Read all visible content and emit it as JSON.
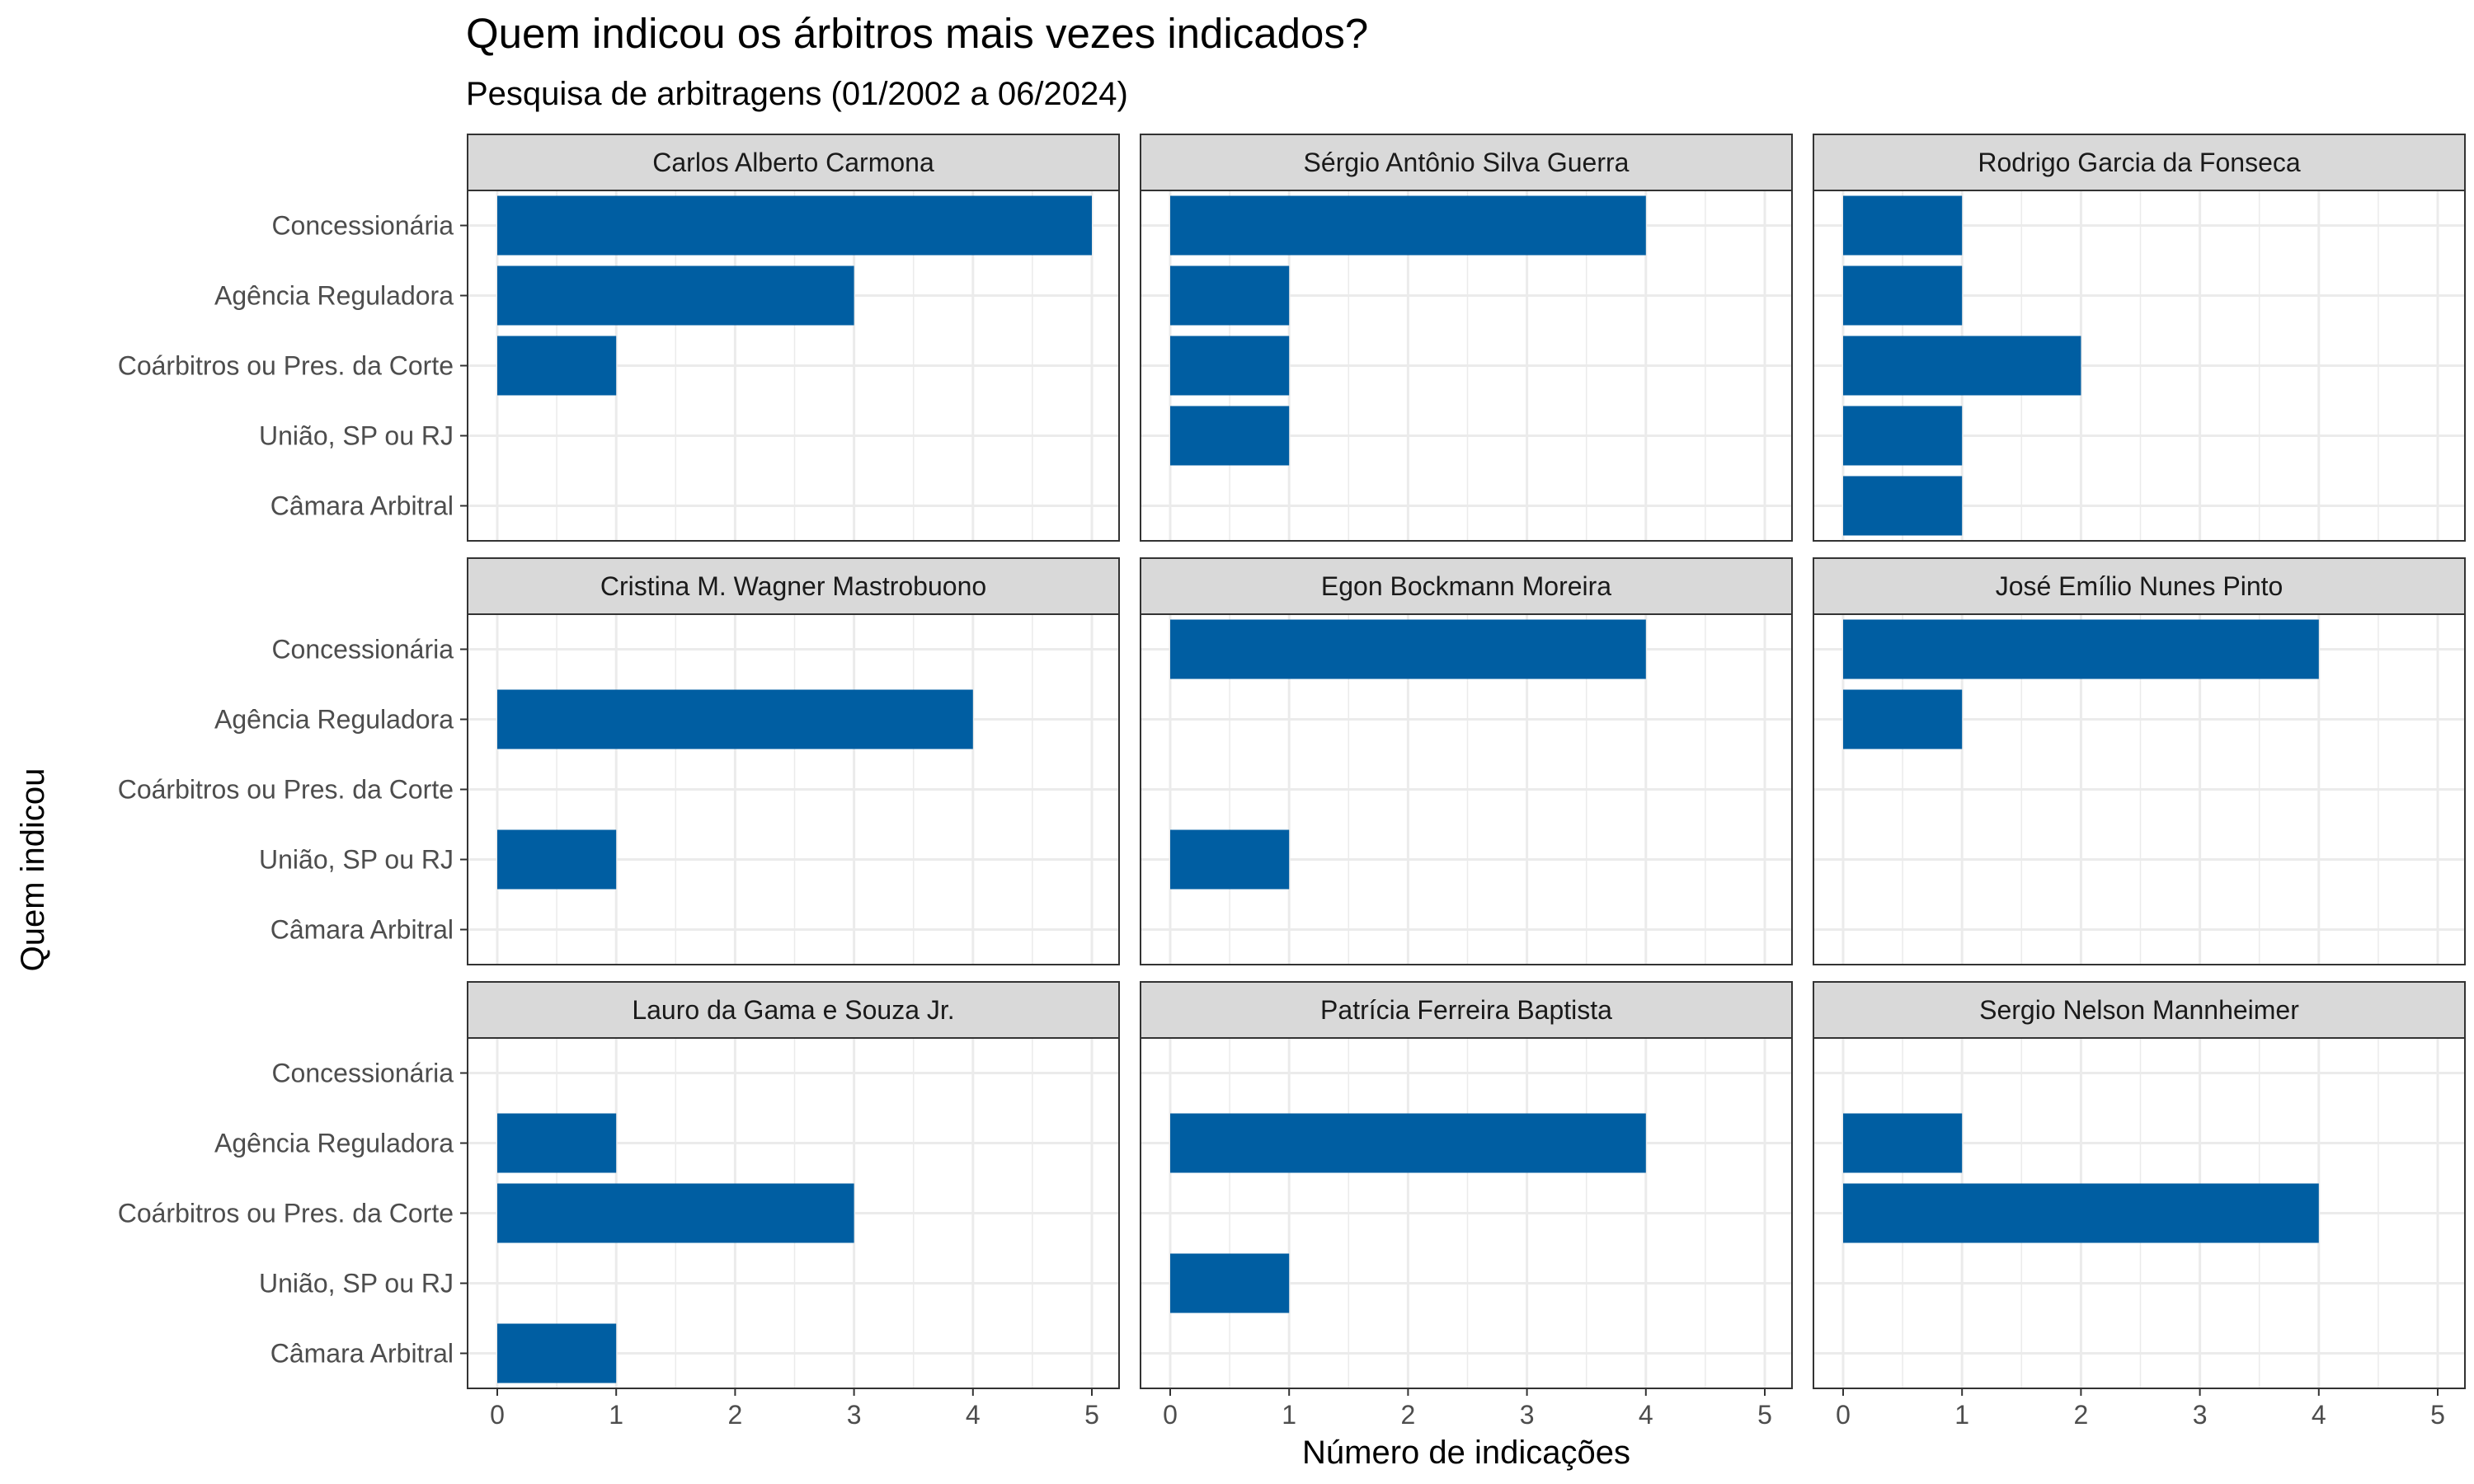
{
  "chart_data": {
    "type": "bar",
    "orientation": "horizontal",
    "title": "Quem indicou os árbitros mais vezes indicados?",
    "subtitle": "Pesquisa de arbitragens (01/2002 a 06/2024)",
    "xlabel": "Número de indicações",
    "ylabel": "Quem indicou",
    "xlim": [
      0,
      5
    ],
    "x_ticks": [
      "0",
      "1",
      "2",
      "3",
      "4",
      "5"
    ],
    "grid": true,
    "bar_color": "#005ea2",
    "categories": [
      "Concessionária",
      "Agência Reguladora",
      "Coárbitros ou Pres. da Corte",
      "União, SP ou RJ",
      "Câmara Arbitral"
    ],
    "panels": [
      {
        "name": "Carlos Alberto Carmona",
        "values": [
          5,
          3,
          1,
          0,
          0
        ]
      },
      {
        "name": "Sérgio Antônio Silva Guerra",
        "values": [
          4,
          1,
          1,
          1,
          0
        ]
      },
      {
        "name": "Rodrigo Garcia da Fonseca",
        "values": [
          1,
          1,
          2,
          1,
          1
        ]
      },
      {
        "name": "Cristina M. Wagner Mastrobuono",
        "values": [
          0,
          4,
          0,
          1,
          0
        ]
      },
      {
        "name": "Egon Bockmann Moreira",
        "values": [
          4,
          0,
          0,
          1,
          0
        ]
      },
      {
        "name": "José Emílio Nunes Pinto",
        "values": [
          4,
          1,
          0,
          0,
          0
        ]
      },
      {
        "name": "Lauro da Gama e Souza Jr.",
        "values": [
          0,
          1,
          3,
          0,
          1
        ]
      },
      {
        "name": "Patrícia Ferreira Baptista",
        "values": [
          0,
          4,
          0,
          1,
          0
        ]
      },
      {
        "name": "Sergio Nelson Mannheimer",
        "values": [
          0,
          1,
          4,
          0,
          0
        ]
      }
    ]
  }
}
